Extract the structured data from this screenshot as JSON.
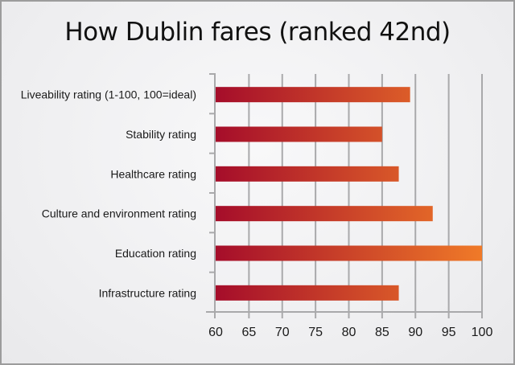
{
  "chart_data": {
    "type": "bar",
    "orientation": "horizontal",
    "title": "How Dublin fares (ranked 42nd)",
    "categories": [
      "Liveability rating (1-100, 100=ideal)",
      "Stability rating",
      "Healthcare rating",
      "Culture and environment rating",
      "Education rating",
      "Infrastructure rating"
    ],
    "values": [
      89.2,
      85,
      87.5,
      92.6,
      100,
      87.5
    ],
    "xlim": [
      60,
      100
    ],
    "xticks": [
      "60",
      "65",
      "70",
      "75",
      "80",
      "85",
      "90",
      "95",
      "100"
    ],
    "xlabel": "",
    "ylabel": "",
    "grid": true,
    "bar_color_start": "#a50d2a",
    "bar_color_end": "#f07a28",
    "gridline_color": "#a9a9ab"
  }
}
